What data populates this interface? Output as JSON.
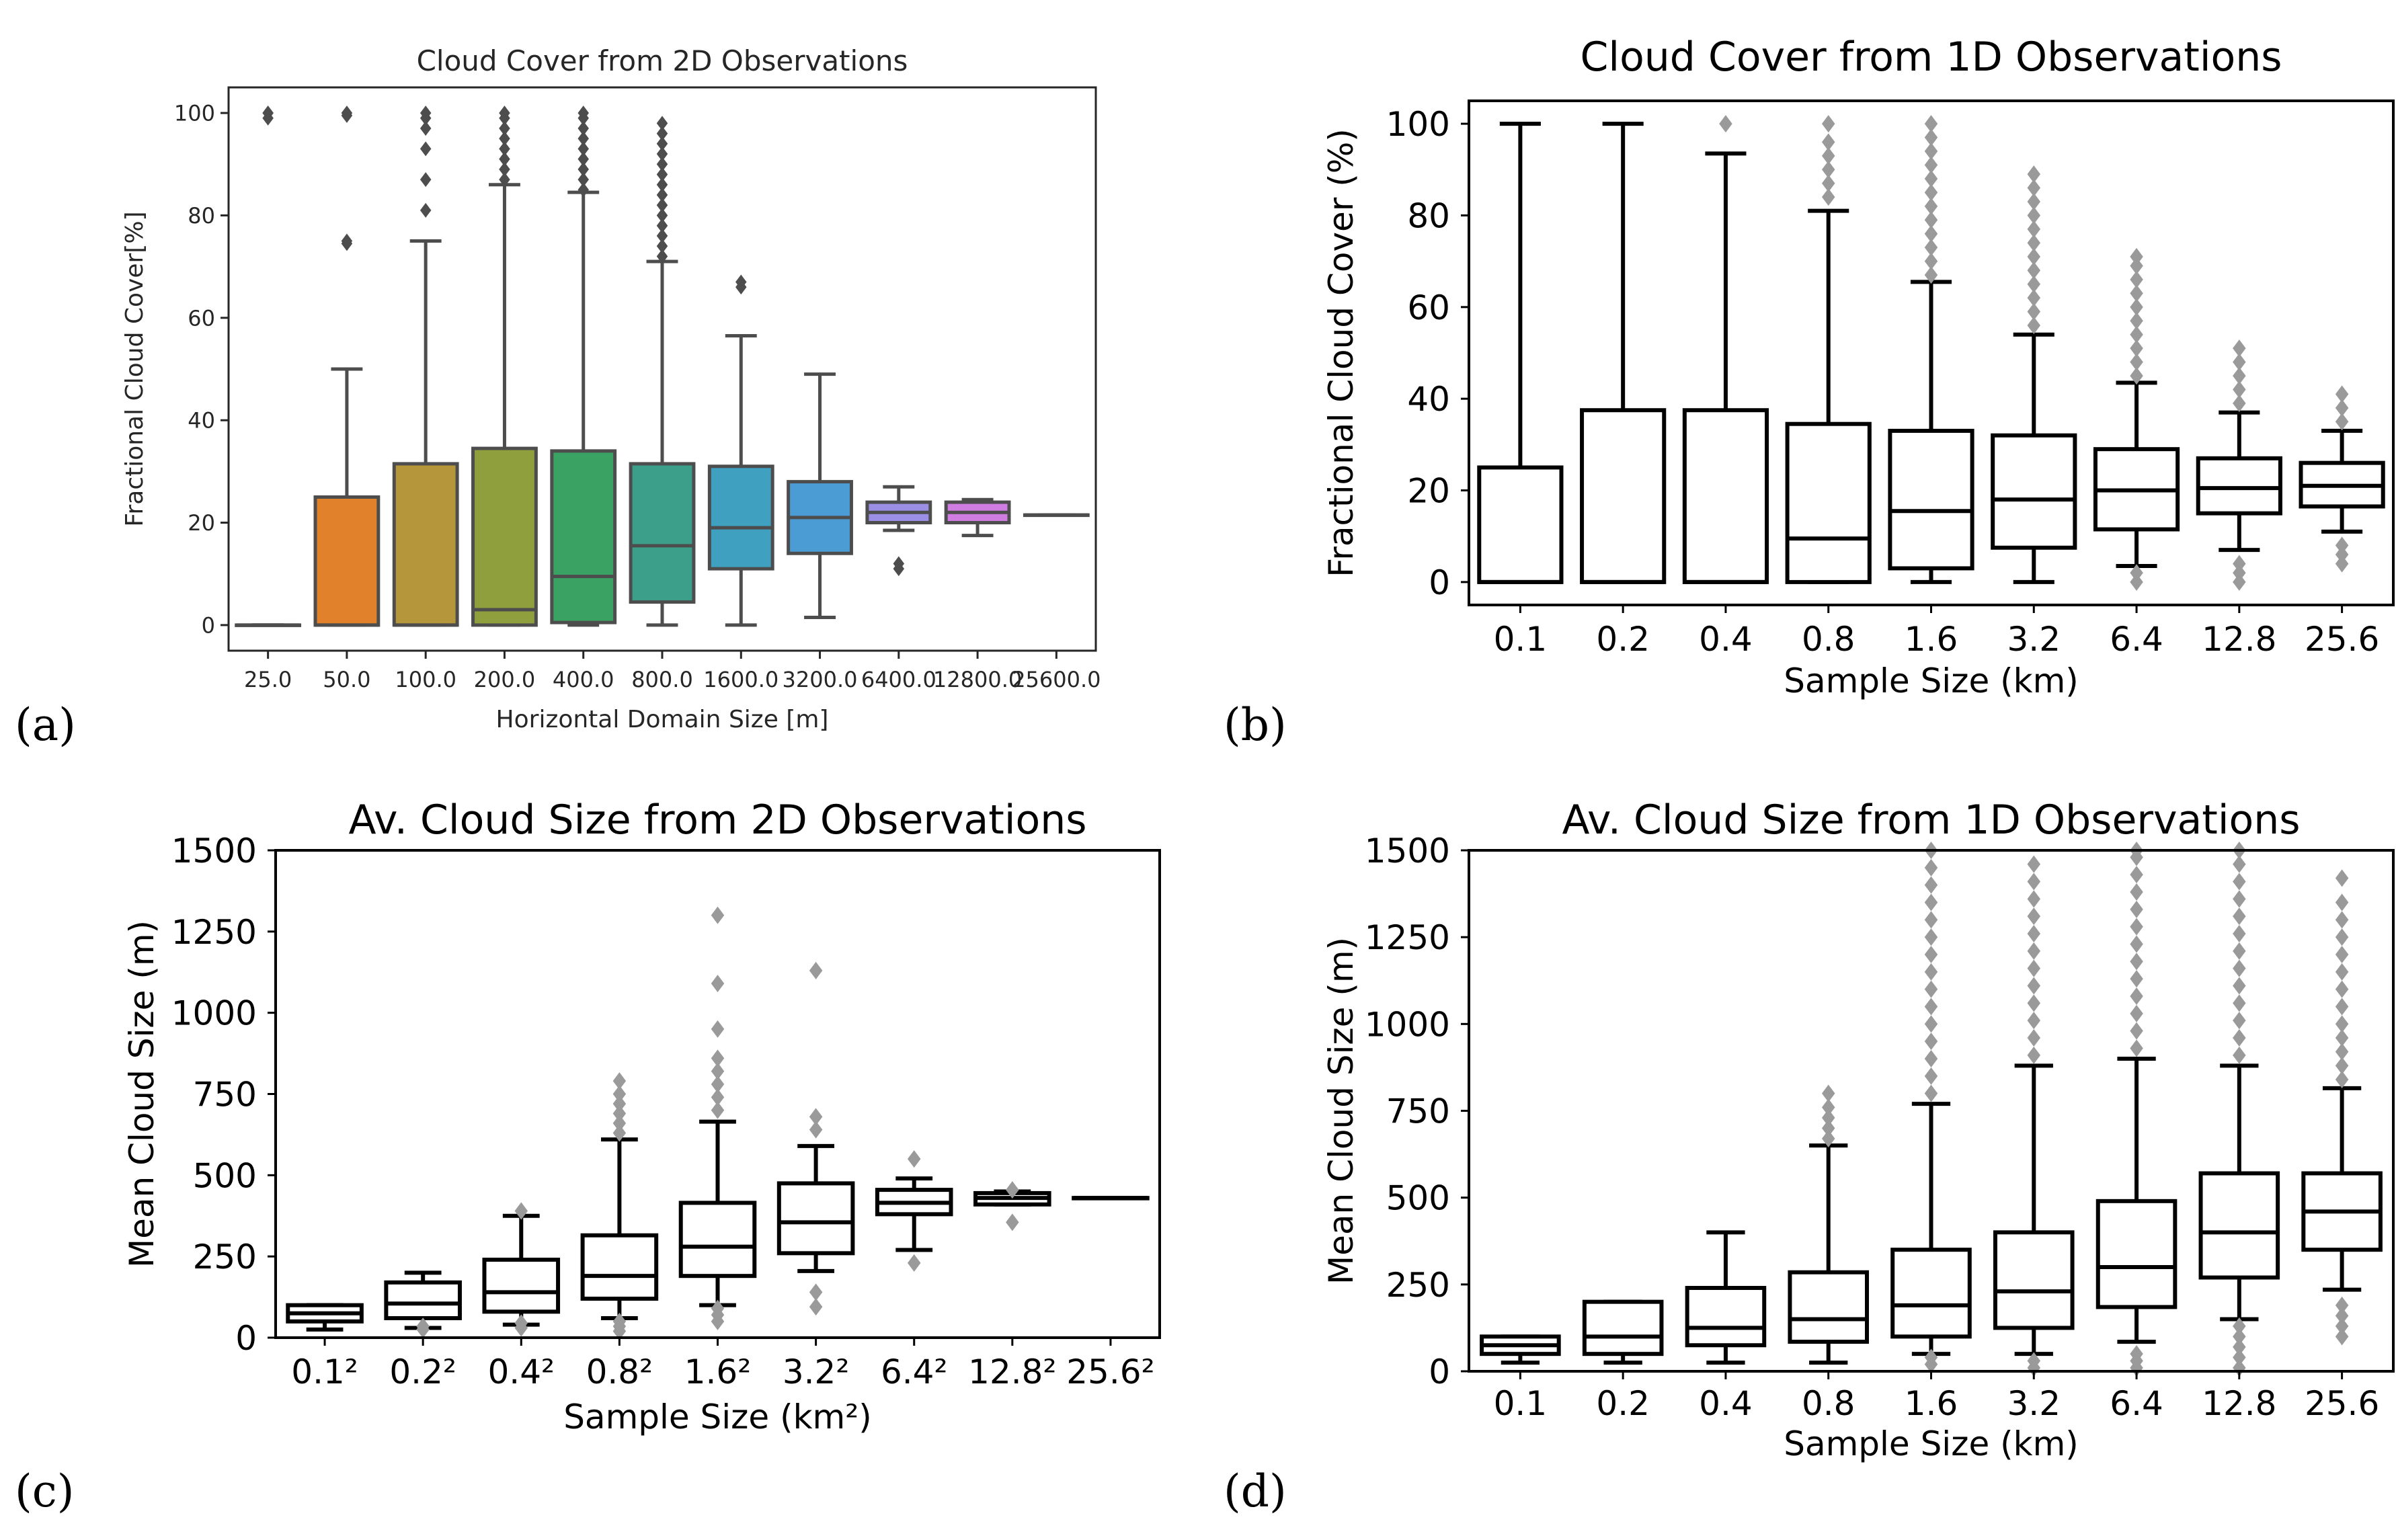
{
  "panel_labels": [
    "(a)",
    "(b)",
    "(c)",
    "(d)"
  ],
  "chart_data": [
    {
      "type": "box",
      "panel": "(a)",
      "title": "Cloud Cover from 2D Observations",
      "xlabel": "Horizontal Domain Size [m]",
      "ylabel": "Fractional Cloud Cover[%]",
      "ylim": [
        -5,
        105
      ],
      "yticks": [
        0,
        20,
        40,
        60,
        80,
        100
      ],
      "categories": [
        "25.0",
        "50.0",
        "100.0",
        "200.0",
        "400.0",
        "800.0",
        "1600.0",
        "3200.0",
        "6400.0",
        "12800.0",
        "25600.0"
      ],
      "colors": [
        "#3274a1",
        "#e1812c",
        "#b5963a",
        "#8f9f3d",
        "#3aa262",
        "#3c9f8a",
        "#3fa0c0",
        "#4b9cd5",
        "#9b8fe5",
        "#cf7de0",
        "#6a8fa8"
      ],
      "boxes": [
        {
          "lw": 0,
          "q1": 0,
          "med": 0,
          "q3": 0,
          "uw": 0,
          "fliers": [
            100,
            100,
            99
          ]
        },
        {
          "lw": 0,
          "q1": 0,
          "med": 0,
          "q3": 25,
          "uw": 50,
          "fliers": [
            75,
            74.5,
            100,
            99.5
          ]
        },
        {
          "lw": 0,
          "q1": 0,
          "med": 0,
          "q3": 31.5,
          "uw": 75,
          "fliers": [
            81,
            87,
            93,
            97,
            99,
            100
          ]
        },
        {
          "lw": 0,
          "q1": 0,
          "med": 3,
          "q3": 34.5,
          "uw": 86,
          "fliers": [
            87,
            89,
            91,
            93,
            95,
            97,
            99,
            100
          ]
        },
        {
          "lw": 0,
          "q1": 0.5,
          "med": 9.5,
          "q3": 34,
          "uw": 84.5,
          "fliers": [
            85,
            87,
            89,
            91,
            93,
            95,
            97,
            99,
            100
          ]
        },
        {
          "lw": 0,
          "q1": 4.5,
          "med": 15.5,
          "q3": 31.5,
          "uw": 71,
          "fliers": [
            72,
            74,
            76,
            78,
            80,
            82,
            84,
            86,
            88,
            90,
            92,
            94,
            96,
            98
          ]
        },
        {
          "lw": 0,
          "q1": 11,
          "med": 19,
          "q3": 31,
          "uw": 56.5,
          "fliers": [
            66,
            67
          ]
        },
        {
          "lw": 1.5,
          "q1": 14,
          "med": 21,
          "q3": 28,
          "uw": 49,
          "fliers": []
        },
        {
          "lw": 18.5,
          "q1": 20,
          "med": 22,
          "q3": 24,
          "uw": 27,
          "fliers": [
            11,
            12
          ]
        },
        {
          "lw": 17.5,
          "q1": 20,
          "med": 22,
          "q3": 24,
          "uw": 24.5,
          "fliers": []
        },
        {
          "lw": 21.5,
          "q1": 21.5,
          "med": 21.5,
          "q3": 21.5,
          "uw": 21.5,
          "fliers": []
        }
      ]
    },
    {
      "type": "box",
      "panel": "(b)",
      "title": "Cloud Cover from 1D Observations",
      "xlabel": "Sample Size (km)",
      "ylabel": "Fractional Cloud Cover (%)",
      "ylim": [
        -5,
        105
      ],
      "yticks": [
        0,
        20,
        40,
        60,
        80,
        100
      ],
      "categories": [
        "0.1",
        "0.2",
        "0.4",
        "0.8",
        "1.6",
        "3.2",
        "6.4",
        "12.8",
        "25.6"
      ],
      "boxes": [
        {
          "lw": 0,
          "q1": 0,
          "med": 0,
          "q3": 25,
          "uw": 100,
          "fliers": []
        },
        {
          "lw": 0,
          "q1": 0,
          "med": 0,
          "q3": 37.5,
          "uw": 100,
          "fliers": []
        },
        {
          "lw": 0,
          "q1": 0,
          "med": 0,
          "q3": 37.5,
          "uw": 93.5,
          "fliers": [
            100
          ]
        },
        {
          "lw": 0,
          "q1": 0,
          "med": 9.5,
          "q3": 34.5,
          "uw": 81,
          "fliers": [
            84,
            87,
            90,
            93,
            96,
            100
          ]
        },
        {
          "lw": 0,
          "q1": 3,
          "med": 15.5,
          "q3": 33,
          "uw": 65.5,
          "fliers": [
            67,
            70,
            73,
            76,
            79,
            82,
            85,
            88,
            91,
            94,
            97,
            100
          ]
        },
        {
          "lw": 0,
          "q1": 7.5,
          "med": 18,
          "q3": 32,
          "uw": 54,
          "fliers": [
            56,
            59,
            62,
            65,
            68,
            71,
            74,
            77,
            80,
            83,
            86,
            89
          ]
        },
        {
          "lw": 3.5,
          "q1": 11.5,
          "med": 20,
          "q3": 29,
          "uw": 43.5,
          "fliers": [
            0,
            2,
            45,
            48,
            51,
            54,
            57,
            60,
            63,
            66,
            69,
            71
          ]
        },
        {
          "lw": 7,
          "q1": 15,
          "med": 20.5,
          "q3": 27,
          "uw": 37,
          "fliers": [
            0,
            2,
            4,
            39,
            42,
            45,
            48,
            51
          ]
        },
        {
          "lw": 11,
          "q1": 16.5,
          "med": 21,
          "q3": 26,
          "uw": 33,
          "fliers": [
            4,
            6,
            8,
            35,
            38,
            41
          ]
        }
      ]
    },
    {
      "type": "box",
      "panel": "(c)",
      "title": "Av. Cloud Size from 2D Observations",
      "xlabel": "Sample Size (km²)",
      "ylabel": "Mean Cloud Size (m)",
      "ylim": [
        0,
        1500
      ],
      "yticks": [
        0,
        250,
        500,
        750,
        1000,
        1250,
        1500
      ],
      "categories": [
        "0.1²",
        "0.2²",
        "0.4²",
        "0.8²",
        "1.6²",
        "3.2²",
        "6.4²",
        "12.8²",
        "25.6²"
      ],
      "boxes": [
        {
          "lw": 25,
          "q1": 50,
          "med": 75,
          "q3": 100,
          "uw": 100,
          "fliers": []
        },
        {
          "lw": 30,
          "q1": 60,
          "med": 105,
          "q3": 170,
          "uw": 200,
          "fliers": [
            25,
            35
          ]
        },
        {
          "lw": 40,
          "q1": 80,
          "med": 140,
          "q3": 240,
          "uw": 375,
          "fliers": [
            30,
            45,
            390
          ]
        },
        {
          "lw": 60,
          "q1": 120,
          "med": 190,
          "q3": 315,
          "uw": 610,
          "fliers": [
            20,
            35,
            50,
            630,
            660,
            690,
            720,
            750,
            790
          ]
        },
        {
          "lw": 100,
          "q1": 190,
          "med": 280,
          "q3": 415,
          "uw": 665,
          "fliers": [
            50,
            70,
            90,
            700,
            740,
            780,
            820,
            860,
            950,
            1090,
            1300
          ]
        },
        {
          "lw": 205,
          "q1": 260,
          "med": 355,
          "q3": 475,
          "uw": 590,
          "fliers": [
            95,
            140,
            640,
            680,
            1130
          ]
        },
        {
          "lw": 270,
          "q1": 380,
          "med": 415,
          "q3": 455,
          "uw": 490,
          "fliers": [
            230,
            550
          ]
        },
        {
          "lw": 410,
          "q1": 410,
          "med": 430,
          "q3": 445,
          "uw": 450,
          "fliers": [
            355,
            455
          ]
        },
        {
          "lw": 430,
          "q1": 430,
          "med": 430,
          "q3": 430,
          "uw": 430,
          "fliers": []
        }
      ]
    },
    {
      "type": "box",
      "panel": "(d)",
      "title": "Av. Cloud Size from 1D Observations",
      "xlabel": "Sample Size (km)",
      "ylabel": "Mean Cloud Size (m)",
      "ylim": [
        0,
        1500
      ],
      "yticks": [
        0,
        250,
        500,
        750,
        1000,
        1250,
        1500
      ],
      "categories": [
        "0.1",
        "0.2",
        "0.4",
        "0.8",
        "1.6",
        "3.2",
        "6.4",
        "12.8",
        "25.6"
      ],
      "boxes": [
        {
          "lw": 25,
          "q1": 50,
          "med": 75,
          "q3": 100,
          "uw": 100,
          "fliers": []
        },
        {
          "lw": 25,
          "q1": 50,
          "med": 100,
          "q3": 200,
          "uw": 200,
          "fliers": []
        },
        {
          "lw": 25,
          "q1": 75,
          "med": 125,
          "q3": 240,
          "uw": 400,
          "fliers": []
        },
        {
          "lw": 25,
          "q1": 85,
          "med": 150,
          "q3": 285,
          "uw": 650,
          "fliers": [
            670,
            700,
            730,
            760,
            800
          ]
        },
        {
          "lw": 50,
          "q1": 100,
          "med": 190,
          "q3": 350,
          "uw": 770,
          "fliers": [
            20,
            40,
            800,
            850,
            900,
            950,
            1000,
            1050,
            1100,
            1150,
            1200,
            1250,
            1300,
            1350,
            1400,
            1450,
            1500
          ]
        },
        {
          "lw": 50,
          "q1": 125,
          "med": 230,
          "q3": 400,
          "uw": 880,
          "fliers": [
            10,
            30,
            910,
            960,
            1010,
            1060,
            1110,
            1160,
            1210,
            1260,
            1310,
            1360,
            1410,
            1460
          ]
        },
        {
          "lw": 85,
          "q1": 185,
          "med": 300,
          "q3": 490,
          "uw": 900,
          "fliers": [
            10,
            30,
            50,
            930,
            980,
            1030,
            1080,
            1130,
            1180,
            1230,
            1280,
            1330,
            1380,
            1430,
            1480,
            1500
          ]
        },
        {
          "lw": 150,
          "q1": 270,
          "med": 400,
          "q3": 570,
          "uw": 880,
          "fliers": [
            10,
            40,
            70,
            100,
            130,
            910,
            960,
            1010,
            1060,
            1110,
            1160,
            1210,
            1260,
            1310,
            1360,
            1410,
            1460,
            1500
          ]
        },
        {
          "lw": 235,
          "q1": 350,
          "med": 460,
          "q3": 570,
          "uw": 815,
          "fliers": [
            100,
            130,
            160,
            190,
            840,
            880,
            920,
            960,
            1000,
            1050,
            1100,
            1150,
            1200,
            1250,
            1300,
            1350,
            1420
          ]
        }
      ]
    }
  ]
}
